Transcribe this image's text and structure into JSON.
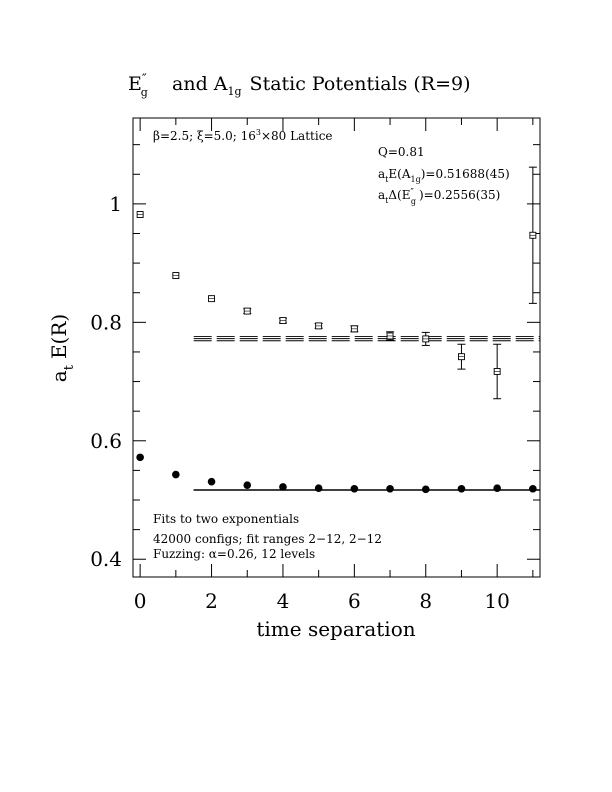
{
  "chart_data": {
    "type": "scatter",
    "title": {
      "base": "E",
      "sup": "″",
      "sub": "g",
      "middle": "and A",
      "sub2": "1g",
      "tail": "Static Potentials (R=9)"
    },
    "xlabel": "time separation",
    "ylabel": {
      "main": "a",
      "sub": "t",
      "rest": "E(R)"
    },
    "xlim": [
      -0.2,
      11.2
    ],
    "ylim": [
      0.37,
      1.145
    ],
    "x_ticks": [
      0,
      2,
      4,
      6,
      8,
      10
    ],
    "x_tick_labels": [
      "0",
      "2",
      "4",
      "6",
      "8",
      "10"
    ],
    "y_ticks": [
      0.4,
      0.6,
      0.8,
      1.0
    ],
    "y_tick_labels": [
      "0.4",
      "0.6",
      "0.8",
      "1"
    ],
    "x_minor_step": 1,
    "y_minor_step": 0.05,
    "series": [
      {
        "marker": "filled-circle",
        "points": [
          {
            "x": 0,
            "y": 0.572,
            "err": 0.002
          },
          {
            "x": 1,
            "y": 0.543,
            "err": 0.002
          },
          {
            "x": 2,
            "y": 0.531,
            "err": 0.002
          },
          {
            "x": 3,
            "y": 0.525,
            "err": 0.002
          },
          {
            "x": 4,
            "y": 0.522,
            "err": 0.002
          },
          {
            "x": 5,
            "y": 0.52,
            "err": 0.002
          },
          {
            "x": 6,
            "y": 0.519,
            "err": 0.002
          },
          {
            "x": 7,
            "y": 0.519,
            "err": 0.002
          },
          {
            "x": 8,
            "y": 0.518,
            "err": 0.002
          },
          {
            "x": 9,
            "y": 0.519,
            "err": 0.002
          },
          {
            "x": 10,
            "y": 0.52,
            "err": 0.003
          },
          {
            "x": 11,
            "y": 0.519,
            "err": 0.003
          }
        ]
      },
      {
        "marker": "open-square",
        "points": [
          {
            "x": 0,
            "y": 0.982,
            "err": 0.003
          },
          {
            "x": 1,
            "y": 0.879,
            "err": 0.003
          },
          {
            "x": 2,
            "y": 0.84,
            "err": 0.003
          },
          {
            "x": 3,
            "y": 0.819,
            "err": 0.004
          },
          {
            "x": 4,
            "y": 0.803,
            "err": 0.004
          },
          {
            "x": 5,
            "y": 0.794,
            "err": 0.004
          },
          {
            "x": 6,
            "y": 0.789,
            "err": 0.005
          },
          {
            "x": 7,
            "y": 0.777,
            "err": 0.007
          },
          {
            "x": 8,
            "y": 0.772,
            "err": 0.011
          },
          {
            "x": 9,
            "y": 0.742,
            "err": 0.021
          },
          {
            "x": 10,
            "y": 0.717,
            "err": 0.046
          },
          {
            "x": 11,
            "y": 0.947,
            "err": 0.115
          }
        ]
      }
    ],
    "fits": [
      {
        "x_range": [
          1.5,
          11.2
        ],
        "value": 0.5169,
        "band": 0.0005
      },
      {
        "x_range": [
          1.5,
          11.2
        ],
        "value": 0.7725,
        "band": 0.0036
      }
    ],
    "annotations": {
      "lattice": {
        "beta": "β=2.5;",
        "xi": "ξ=5.0;",
        "lattice_a": "16",
        "lattice_sup": "3",
        "lattice_b": "×80 Lattice"
      },
      "q": "Q=0.81",
      "energy_line": {
        "a": "a",
        "sub_t": "t",
        "mid": "E(A",
        "sub_1g": "1g",
        "value": ")=0.51688(45)"
      },
      "gap_line": {
        "a": "a",
        "sub_t": "t",
        "mid": "Δ(E",
        "sup": "″",
        "sub_g": "g",
        "value": ")=0.2556(35)"
      },
      "fits_text": "Fits to two exponentials",
      "configs_text": "42000 configs; fit ranges 2−12, 2−12",
      "fuzzing_text": "Fuzzing: α=0.26, 12 levels"
    }
  }
}
